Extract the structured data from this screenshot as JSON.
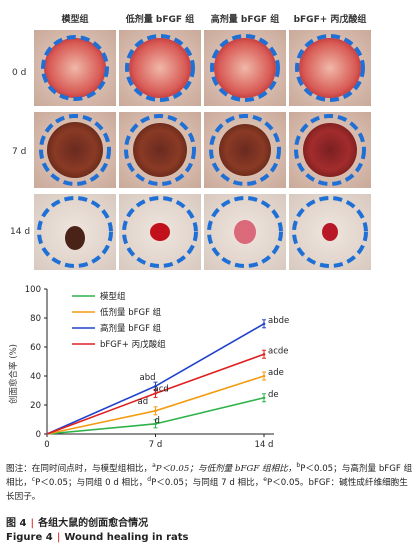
{
  "figure": {
    "columns": [
      "模型组",
      "低剂量 bFGF 组",
      "高剂量 bFGF 组",
      "bFGF+ 丙戊酸组"
    ],
    "rows": [
      "0 d",
      "7 d",
      "14 d"
    ]
  },
  "chart_data": {
    "type": "line",
    "x": [
      "0",
      "7 d",
      "14 d"
    ],
    "ylabel": "创面愈合率 (%)",
    "ylim": [
      0,
      100
    ],
    "yticks": [
      0,
      20,
      40,
      60,
      80,
      100
    ],
    "legend_position": "top-left",
    "series": [
      {
        "name": "模型组",
        "color": "#2db34a",
        "values": [
          0,
          7,
          25
        ]
      },
      {
        "name": "低剂量 bFGF 组",
        "color": "#f39c12",
        "values": [
          0,
          16,
          40
        ]
      },
      {
        "name": "高剂量 bFGF 组",
        "color": "#2244cc",
        "values": [
          0,
          33,
          76
        ]
      },
      {
        "name": "bFGF+ 丙戊酸组",
        "color": "#e02020",
        "values": [
          0,
          28,
          55
        ]
      }
    ],
    "annotations": {
      "d7": [
        "abd",
        "acd",
        "ad",
        "d"
      ],
      "d14": [
        "abde",
        "acde",
        "ade",
        "de"
      ]
    }
  },
  "caption": {
    "p1": "图注：在同时间点时，与模型组相比，",
    "p2": "P＜0.05；与低剂量 bFGF 组相比，",
    "p3": "P＜0.05；与高剂量 bFGF 组相比，",
    "p4": "P＜0.05；与同组 0 d 相比，",
    "p5": "P＜0.05；与同组 7 d 相比，",
    "p6": "P＜0.05。bFGF：碱性成纤维细胞生长因子。",
    "sa": "a",
    "sb": "b",
    "sc": "c",
    "sd": "d",
    "se": "e"
  },
  "figure_title_cn": {
    "label": "图 4",
    "text": "各组大鼠的创面愈合情况"
  },
  "figure_title_en": {
    "label": "Figure 4",
    "text": "Wound healing in rats"
  }
}
